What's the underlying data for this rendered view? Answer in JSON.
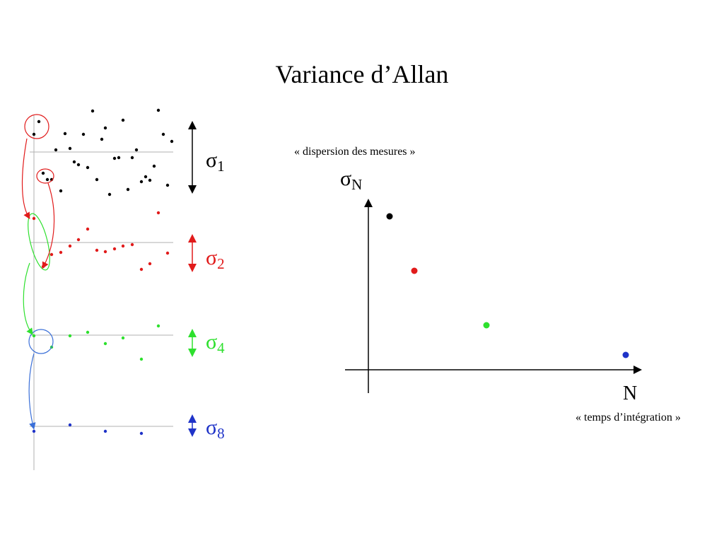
{
  "title": "Variance d’Allan",
  "colors": {
    "level1": "#000000",
    "level2": "#e11b1b",
    "level4": "#2ee02e",
    "level8": "#1f33c8",
    "axis": "#000000",
    "baseline": "#b0b0b0",
    "circle_red": "#e11b1b",
    "circle_green": "#2ee02e",
    "circle_blue": "#3a6fd8"
  },
  "levels": [
    {
      "symbol": "σ",
      "subscript": "1"
    },
    {
      "symbol": "σ",
      "subscript": "2"
    },
    {
      "symbol": "σ",
      "subscript": "4"
    },
    {
      "symbol": "σ",
      "subscript": "8"
    }
  ],
  "graph": {
    "y_symbol": "σ",
    "y_subscript": "N",
    "y_caption": "« dispersion des mesures »",
    "x_label": "N",
    "x_caption": "« temps d’intégration »"
  }
}
